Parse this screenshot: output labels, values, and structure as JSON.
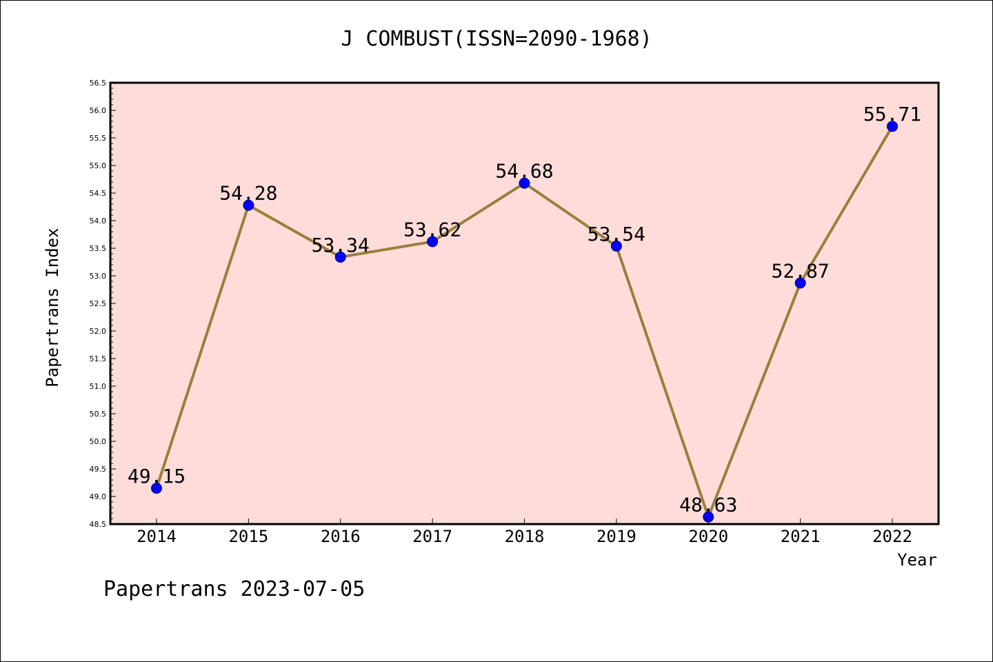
{
  "chart_data": {
    "type": "line",
    "title": "J COMBUST(ISSN=2090-1968)",
    "xlabel": "Year",
    "ylabel": "Papertrans Index",
    "categories": [
      "2014",
      "2015",
      "2016",
      "2017",
      "2018",
      "2019",
      "2020",
      "2021",
      "2022"
    ],
    "series": [
      {
        "values": [
          49.15,
          54.28,
          53.34,
          53.62,
          54.68,
          53.54,
          48.63,
          52.87,
          55.71
        ],
        "data_labels": [
          "49.15",
          "54.28",
          "53.34",
          "53.62",
          "54.68",
          "53.54",
          "48.63",
          "52.87",
          "55.71"
        ]
      }
    ],
    "ylim": [
      48.5,
      56.5
    ],
    "yticks": [
      "48.5",
      "49.0",
      "49.5",
      "50.0",
      "50.5",
      "51.0",
      "51.5",
      "52.0",
      "52.5",
      "53.0",
      "53.5",
      "54.0",
      "54.5",
      "55.0",
      "55.5",
      "56.0",
      "56.5"
    ],
    "grid": false,
    "legend": "none",
    "colors": {
      "plot_background": "#fddcda",
      "line": "#9a7f3a",
      "marker": "#0000ff"
    }
  },
  "footer": "Papertrans 2023-07-05"
}
